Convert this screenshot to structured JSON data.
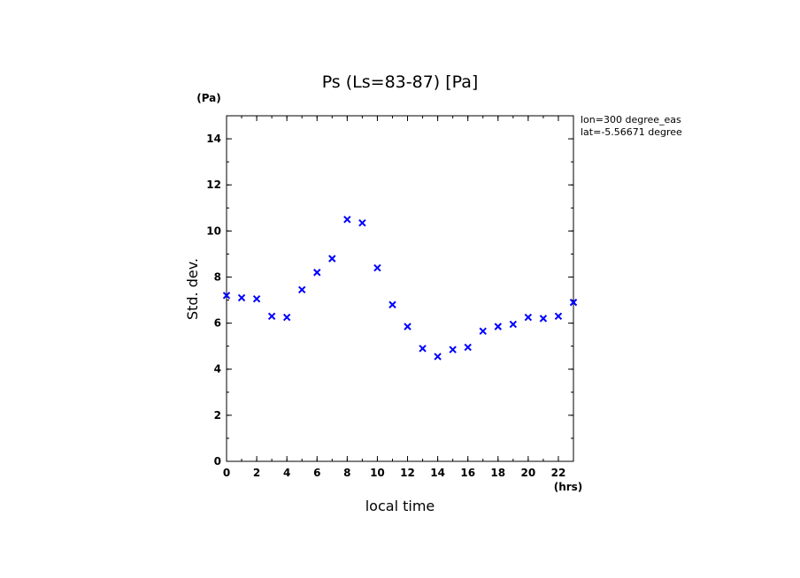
{
  "chart_data": {
    "type": "scatter",
    "title": "Ps (Ls=83-87) [Pa]",
    "xlabel": "local time",
    "ylabel": "Std. dev.",
    "x_unit": "(hrs)",
    "y_unit": "(Pa)",
    "xlim": [
      0,
      23
    ],
    "ylim": [
      0,
      15
    ],
    "x_ticks": [
      0,
      2,
      4,
      6,
      8,
      10,
      12,
      14,
      16,
      18,
      20,
      22
    ],
    "y_ticks": [
      0,
      2,
      4,
      6,
      8,
      10,
      12,
      14
    ],
    "grid": false,
    "marker": "x",
    "marker_color": "#0000ff",
    "annotations": [
      "lon=300 degree_eas",
      "lat=-5.56671 degree"
    ],
    "series": [
      {
        "x": [
          0,
          1,
          2,
          3,
          4,
          5,
          6,
          7,
          8,
          9,
          10,
          11,
          12,
          13,
          14,
          15,
          16,
          17,
          18,
          19,
          20,
          21,
          22,
          23
        ],
        "y": [
          7.2,
          7.1,
          7.05,
          6.3,
          6.25,
          7.45,
          8.2,
          8.8,
          10.5,
          10.35,
          8.4,
          6.8,
          5.85,
          4.9,
          4.55,
          4.85,
          4.95,
          5.65,
          5.85,
          5.95,
          6.25,
          6.2,
          6.3,
          6.9
        ]
      }
    ]
  }
}
